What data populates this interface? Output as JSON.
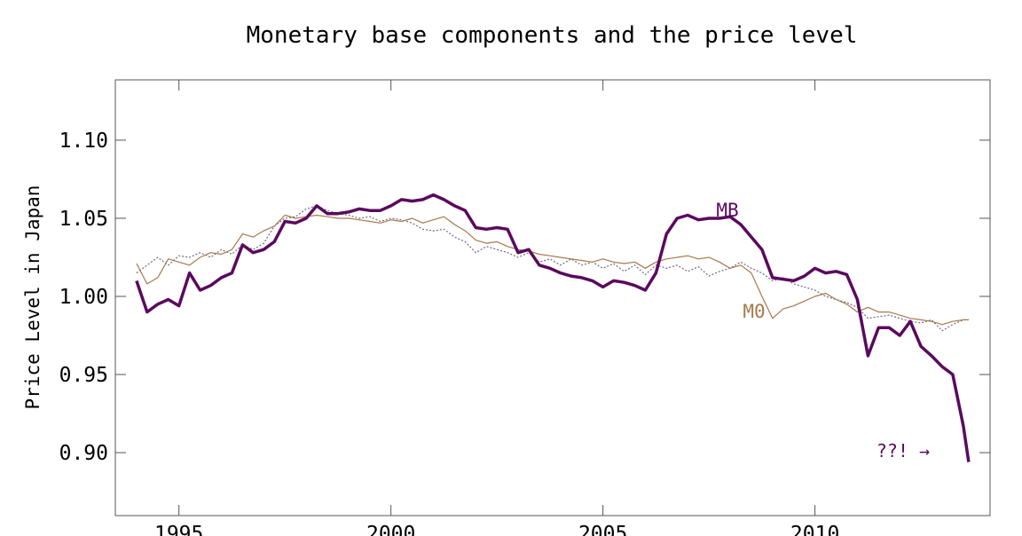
{
  "chart_data": {
    "type": "line",
    "title": "Monetary base components and the price level",
    "y_label": "Price Level in Japan",
    "annotation": "??! →",
    "xlim": [
      1993.5,
      2014.13
    ],
    "ylim": [
      0.8597,
      1.1386
    ],
    "xticks": [
      1995,
      2000,
      2005,
      2010
    ],
    "yticks": [
      {
        "value": 0.9,
        "label": "0.90"
      },
      {
        "value": 0.95,
        "label": "0.95"
      },
      {
        "value": 1.0,
        "label": "1.00"
      },
      {
        "value": 1.05,
        "label": "1.05"
      },
      {
        "value": 1.1,
        "label": "1.10"
      }
    ],
    "x": [
      1994.0,
      1994.25,
      1994.5,
      1994.75,
      1995.0,
      1995.25,
      1995.5,
      1995.75,
      1996.0,
      1996.25,
      1996.5,
      1996.75,
      1997.0,
      1997.25,
      1997.5,
      1997.75,
      1998.0,
      1998.25,
      1998.5,
      1998.75,
      1999.0,
      1999.25,
      1999.5,
      1999.75,
      2000.0,
      2000.25,
      2000.5,
      2000.75,
      2001.0,
      2001.25,
      2001.5,
      2001.75,
      2002.0,
      2002.25,
      2002.5,
      2002.75,
      2003.0,
      2003.25,
      2003.5,
      2003.75,
      2004.0,
      2004.25,
      2004.5,
      2004.75,
      2005.0,
      2005.25,
      2005.5,
      2005.75,
      2006.0,
      2006.25,
      2006.5,
      2006.75,
      2007.0,
      2007.25,
      2007.5,
      2007.75,
      2008.0,
      2008.25,
      2008.5,
      2008.75,
      2009.0,
      2009.25,
      2009.5,
      2009.75,
      2010.0,
      2010.25,
      2010.5,
      2010.75,
      2011.0,
      2011.25,
      2011.5,
      2011.75,
      2012.0,
      2012.25,
      2012.5,
      2012.75,
      2013.0,
      2013.25,
      2013.5,
      2013.625
    ],
    "series": [
      {
        "color": "#6a6a8a",
        "values": [
          1.015,
          1.02,
          1.025,
          1.02,
          1.026,
          1.025,
          1.028,
          1.025,
          1.03,
          1.027,
          1.033,
          1.03,
          1.034,
          1.045,
          1.05,
          1.051,
          1.056,
          1.058,
          1.055,
          1.053,
          1.052,
          1.05,
          1.051,
          1.048,
          1.05,
          1.049,
          1.047,
          1.043,
          1.042,
          1.043,
          1.038,
          1.035,
          1.028,
          1.032,
          1.03,
          1.028,
          1.025,
          1.028,
          1.022,
          1.024,
          1.02,
          1.024,
          1.02,
          1.022,
          1.018,
          1.021,
          1.016,
          1.02,
          1.014,
          1.02,
          1.018,
          1.02,
          1.016,
          1.019,
          1.013,
          1.016,
          1.018,
          1.022,
          1.018,
          1.015,
          1.01,
          1.012,
          1.008,
          1.006,
          1.004,
          1.0,
          0.998,
          0.996,
          0.993,
          0.986,
          0.987,
          0.988,
          0.986,
          0.984,
          0.983,
          0.985,
          0.978,
          0.982,
          0.985,
          0.985
        ]
      },
      {
        "name": "M0",
        "color": "#a8784a",
        "values": [
          1.021,
          1.008,
          1.012,
          1.024,
          1.022,
          1.02,
          1.025,
          1.028,
          1.027,
          1.03,
          1.04,
          1.038,
          1.042,
          1.045,
          1.052,
          1.05,
          1.051,
          1.052,
          1.051,
          1.05,
          1.05,
          1.049,
          1.048,
          1.047,
          1.049,
          1.048,
          1.05,
          1.047,
          1.049,
          1.051,
          1.046,
          1.042,
          1.036,
          1.034,
          1.035,
          1.032,
          1.03,
          1.029,
          1.027,
          1.026,
          1.025,
          1.024,
          1.023,
          1.022,
          1.024,
          1.022,
          1.021,
          1.022,
          1.018,
          1.022,
          1.024,
          1.025,
          1.026,
          1.024,
          1.025,
          1.022,
          1.018,
          1.02,
          1.015,
          1.0,
          0.986,
          0.992,
          0.994,
          0.997,
          1.0,
          1.002,
          0.998,
          0.995,
          0.99,
          0.993,
          0.99,
          0.99,
          0.988,
          0.986,
          0.985,
          0.984,
          0.982,
          0.984,
          0.985,
          0.985
        ]
      },
      {
        "name": "MB",
        "color": "#5a0a5e",
        "values": [
          1.01,
          0.99,
          0.995,
          0.998,
          0.994,
          1.015,
          1.004,
          1.007,
          1.012,
          1.015,
          1.033,
          1.028,
          1.03,
          1.035,
          1.048,
          1.047,
          1.05,
          1.058,
          1.053,
          1.053,
          1.054,
          1.056,
          1.055,
          1.055,
          1.058,
          1.062,
          1.061,
          1.062,
          1.065,
          1.062,
          1.058,
          1.055,
          1.044,
          1.043,
          1.044,
          1.043,
          1.028,
          1.03,
          1.02,
          1.018,
          1.015,
          1.013,
          1.012,
          1.01,
          1.006,
          1.01,
          1.009,
          1.007,
          1.004,
          1.015,
          1.04,
          1.05,
          1.052,
          1.049,
          1.05,
          1.05,
          1.051,
          1.046,
          1.038,
          1.03,
          1.012,
          1.011,
          1.01,
          1.013,
          1.018,
          1.015,
          1.016,
          1.014,
          0.998,
          0.962,
          0.98,
          0.98,
          0.975,
          0.984,
          0.968,
          0.962,
          0.955,
          0.95,
          0.917,
          0.894
        ]
      }
    ]
  }
}
